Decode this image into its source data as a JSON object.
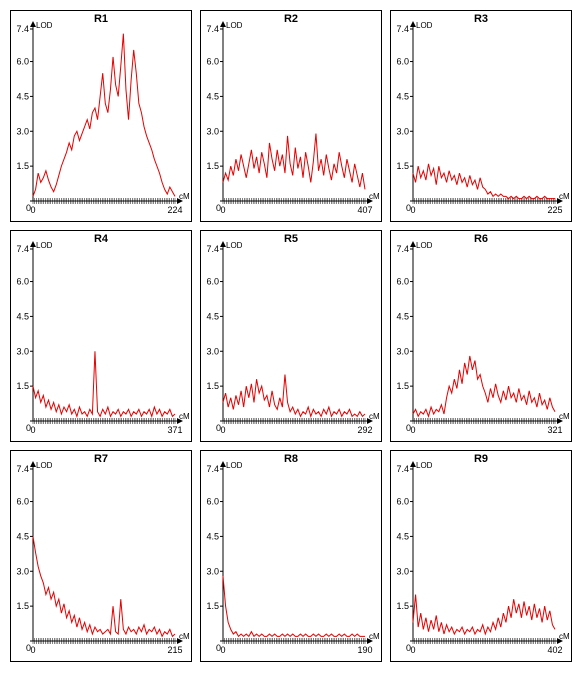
{
  "figure": {
    "ylabel": "LOD",
    "xlabel": "cM",
    "ylim": [
      0,
      7.4
    ],
    "yticks": [
      0,
      1.5,
      3.0,
      4.5,
      6.0,
      7.4
    ],
    "line_color": "#e60000",
    "border_color": "#000000",
    "background": "#ffffff",
    "title_fontsize": 11,
    "tick_fontsize": 9,
    "panels": [
      {
        "title": "R1",
        "xmax": 224,
        "seed": 1,
        "y": [
          0.2,
          0.5,
          1.2,
          0.8,
          1.0,
          1.3,
          0.9,
          0.6,
          0.4,
          0.7,
          1.1,
          1.5,
          1.8,
          2.1,
          2.5,
          2.2,
          2.8,
          3.0,
          2.6,
          2.9,
          3.2,
          3.5,
          3.1,
          3.8,
          4.0,
          3.5,
          4.5,
          5.5,
          4.2,
          3.8,
          4.8,
          6.2,
          5.0,
          4.5,
          5.8,
          7.2,
          4.8,
          3.5,
          5.2,
          6.5,
          5.5,
          4.2,
          3.8,
          3.2,
          2.8,
          2.5,
          2.2,
          1.8,
          1.5,
          1.2,
          0.8,
          0.5,
          0.3,
          0.6,
          0.4,
          0.2
        ]
      },
      {
        "title": "R2",
        "xmax": 407,
        "y": [
          0.8,
          1.2,
          0.9,
          1.5,
          1.1,
          1.8,
          1.3,
          2.0,
          1.5,
          1.0,
          1.6,
          2.2,
          1.4,
          1.9,
          1.2,
          2.1,
          1.6,
          1.0,
          2.5,
          1.8,
          1.3,
          2.2,
          1.5,
          2.0,
          1.2,
          2.8,
          1.6,
          1.1,
          2.3,
          1.4,
          1.9,
          1.0,
          2.1,
          1.5,
          0.8,
          1.7,
          2.9,
          1.3,
          1.8,
          1.1,
          2.0,
          1.4,
          0.9,
          1.6,
          1.2,
          2.1,
          1.5,
          1.0,
          1.8,
          1.3,
          0.8,
          1.6,
          1.1,
          0.6,
          1.2,
          0.5
        ]
      },
      {
        "title": "R3",
        "xmax": 225,
        "y": [
          1.2,
          0.8,
          1.5,
          1.0,
          1.3,
          0.9,
          1.6,
          1.1,
          1.4,
          0.7,
          1.5,
          1.0,
          1.2,
          0.8,
          1.3,
          0.9,
          1.1,
          0.7,
          1.2,
          0.8,
          1.0,
          0.6,
          1.1,
          0.7,
          0.9,
          0.5,
          1.0,
          0.6,
          0.5,
          0.3,
          0.4,
          0.2,
          0.3,
          0.2,
          0.3,
          0.2,
          0.2,
          0.1,
          0.2,
          0.1,
          0.2,
          0.1,
          0.1,
          0.2,
          0.1,
          0.2,
          0.1,
          0.1,
          0.2,
          0.1,
          0.1,
          0.2,
          0.1,
          0.1,
          0.1,
          0.1
        ]
      },
      {
        "title": "R4",
        "xmax": 371,
        "y": [
          1.5,
          1.0,
          1.3,
          0.8,
          1.1,
          0.6,
          0.9,
          0.5,
          0.8,
          0.4,
          0.7,
          0.3,
          0.6,
          0.4,
          0.7,
          0.3,
          0.5,
          0.2,
          0.6,
          0.3,
          0.4,
          0.2,
          0.5,
          0.3,
          3.0,
          0.4,
          0.2,
          0.5,
          0.3,
          0.6,
          0.2,
          0.4,
          0.3,
          0.5,
          0.2,
          0.4,
          0.3,
          0.5,
          0.2,
          0.4,
          0.3,
          0.5,
          0.2,
          0.4,
          0.3,
          0.5,
          0.2,
          0.6,
          0.3,
          0.5,
          0.2,
          0.4,
          0.3,
          0.5,
          0.2,
          0.3
        ]
      },
      {
        "title": "R5",
        "xmax": 292,
        "y": [
          0.8,
          1.2,
          0.6,
          1.0,
          0.5,
          1.1,
          0.7,
          1.3,
          0.6,
          1.5,
          1.0,
          1.6,
          0.8,
          1.8,
          1.2,
          1.5,
          0.9,
          1.1,
          0.6,
          1.3,
          0.7,
          0.5,
          1.0,
          0.6,
          2.0,
          0.8,
          0.4,
          0.6,
          0.3,
          0.5,
          0.2,
          0.4,
          0.3,
          0.6,
          0.2,
          0.5,
          0.3,
          0.4,
          0.2,
          0.5,
          0.3,
          0.6,
          0.2,
          0.4,
          0.3,
          0.5,
          0.2,
          0.4,
          0.3,
          0.5,
          0.2,
          0.3,
          0.2,
          0.4,
          0.2,
          0.3
        ]
      },
      {
        "title": "R6",
        "xmax": 321,
        "y": [
          0.3,
          0.5,
          0.2,
          0.4,
          0.3,
          0.5,
          0.2,
          0.6,
          0.3,
          0.5,
          0.4,
          0.7,
          0.3,
          1.0,
          1.5,
          1.2,
          1.8,
          1.4,
          2.2,
          1.6,
          2.5,
          2.0,
          2.8,
          2.2,
          2.6,
          1.8,
          2.0,
          1.5,
          1.2,
          0.8,
          1.4,
          1.0,
          1.6,
          1.1,
          0.8,
          1.3,
          0.9,
          1.5,
          1.0,
          1.2,
          0.8,
          1.4,
          0.9,
          1.1,
          0.7,
          1.3,
          0.8,
          1.0,
          0.6,
          1.2,
          0.7,
          0.9,
          0.5,
          1.0,
          0.6,
          0.4
        ]
      },
      {
        "title": "R7",
        "xmax": 215,
        "y": [
          4.5,
          3.8,
          3.2,
          2.8,
          2.5,
          2.0,
          2.3,
          1.8,
          2.1,
          1.5,
          1.8,
          1.2,
          1.6,
          1.0,
          1.3,
          0.8,
          1.1,
          0.6,
          1.0,
          0.5,
          0.8,
          0.4,
          0.7,
          0.3,
          0.6,
          0.4,
          0.5,
          0.3,
          0.4,
          0.5,
          0.3,
          1.5,
          0.4,
          0.3,
          1.8,
          0.5,
          0.3,
          0.6,
          0.4,
          0.5,
          0.3,
          0.6,
          0.4,
          0.7,
          0.3,
          0.5,
          0.4,
          0.6,
          0.3,
          0.5,
          0.2,
          0.4,
          0.3,
          0.5,
          0.2,
          0.3
        ]
      },
      {
        "title": "R8",
        "xmax": 190,
        "y": [
          2.8,
          1.5,
          0.8,
          0.5,
          0.3,
          0.4,
          0.2,
          0.3,
          0.2,
          0.3,
          0.2,
          0.4,
          0.2,
          0.3,
          0.2,
          0.3,
          0.2,
          0.2,
          0.3,
          0.2,
          0.3,
          0.2,
          0.2,
          0.3,
          0.2,
          0.3,
          0.2,
          0.3,
          0.2,
          0.2,
          0.3,
          0.2,
          0.3,
          0.2,
          0.2,
          0.3,
          0.2,
          0.3,
          0.2,
          0.2,
          0.3,
          0.2,
          0.3,
          0.2,
          0.2,
          0.3,
          0.2,
          0.3,
          0.2,
          0.2,
          0.3,
          0.2,
          0.3,
          0.2,
          0.2,
          0.2
        ]
      },
      {
        "title": "R9",
        "xmax": 402,
        "y": [
          0.8,
          2.0,
          0.6,
          1.2,
          0.5,
          1.0,
          0.4,
          0.9,
          0.5,
          1.1,
          0.4,
          0.8,
          0.3,
          0.7,
          0.4,
          0.6,
          0.3,
          0.5,
          0.4,
          0.6,
          0.3,
          0.5,
          0.4,
          0.6,
          0.3,
          0.5,
          0.4,
          0.7,
          0.3,
          0.6,
          0.4,
          0.8,
          0.5,
          1.0,
          0.6,
          1.2,
          0.8,
          1.5,
          1.0,
          1.8,
          1.2,
          1.6,
          1.0,
          1.7,
          1.1,
          1.5,
          0.9,
          1.6,
          1.0,
          1.4,
          0.8,
          1.5,
          0.9,
          1.3,
          0.7,
          0.5
        ]
      }
    ]
  }
}
